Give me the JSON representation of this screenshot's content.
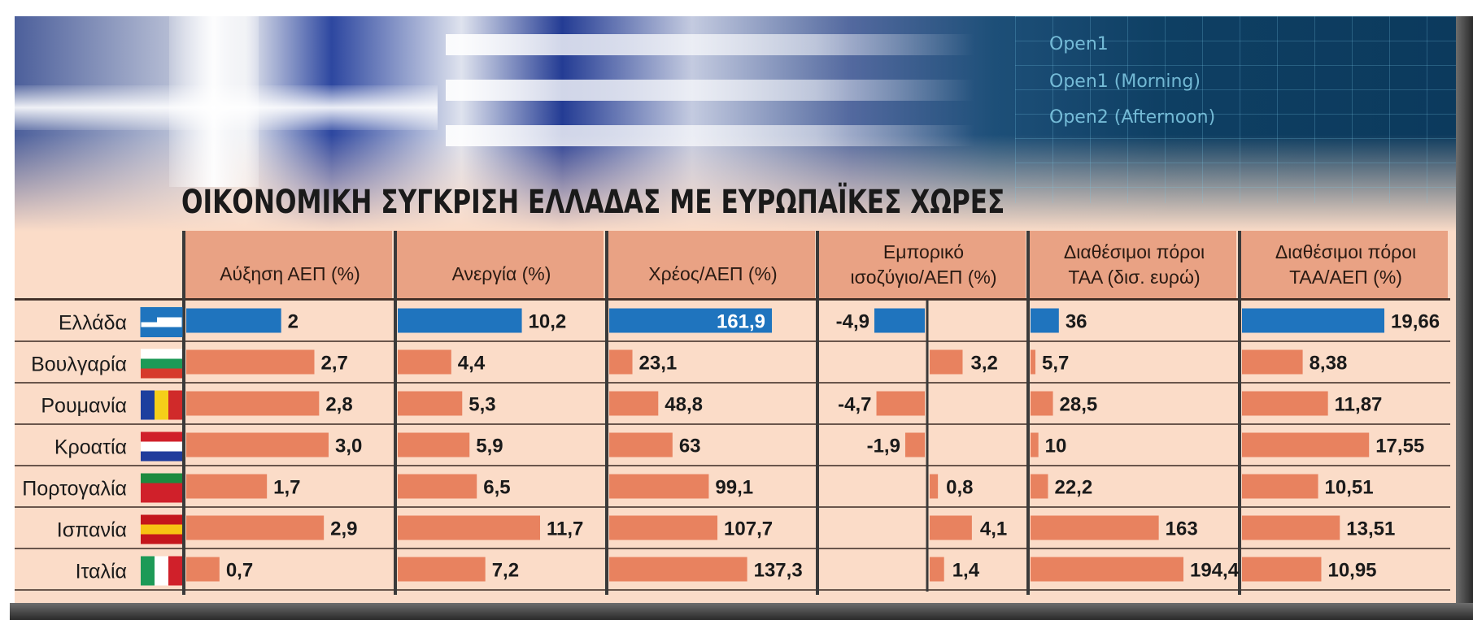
{
  "banner_texts": [
    "Open1",
    "Open1 (Morning)",
    "Open2 (Afternoon)"
  ],
  "chart_data": {
    "type": "bar",
    "title": "ΟΙΚΟΝΟΜΙΚΗ ΣΥΓΚΡΙΣΗ ΕΛΛΑΔΑΣ ΜΕ ΕΥΡΩΠΑΪΚΕΣ ΧΩΡΕΣ",
    "categories": [
      "Ελλάδα",
      "Βουλγαρία",
      "Ρουμανία",
      "Κροατία",
      "Πορτογαλία",
      "Ισπανία",
      "Ιταλία"
    ],
    "highlight_category": "Ελλάδα",
    "colors": {
      "highlight": "#1f74be",
      "bar": "#e8825f",
      "header_bg": "#e9a284",
      "panel_bg": "#fbdcc8",
      "divider": "#3a3a3a"
    },
    "series": [
      {
        "header": [
          "Αύξηση ΑΕΠ (%)"
        ],
        "values": [
          2,
          2.7,
          2.8,
          3.0,
          1.7,
          2.9,
          0.7
        ],
        "labels": [
          "2",
          "2,7",
          "2,8",
          "3,0",
          "1,7",
          "2,9",
          "0,7"
        ]
      },
      {
        "header": [
          "Ανεργία (%)"
        ],
        "values": [
          10.2,
          4.4,
          5.3,
          5.9,
          6.5,
          11.7,
          7.2
        ],
        "labels": [
          "10,2",
          "4,4",
          "5,3",
          "5,9",
          "6,5",
          "11,7",
          "7,2"
        ]
      },
      {
        "header": [
          "Χρέος/ΑΕΠ (%)"
        ],
        "values": [
          161.9,
          23.1,
          48.8,
          63,
          99.1,
          107.7,
          137.3
        ],
        "labels": [
          "161,9",
          "23,1",
          "48,8",
          "63",
          "99,1",
          "107,7",
          "137,3"
        ]
      },
      {
        "header": [
          "Εμπορικό",
          "ισοζύγιο/ΑΕΠ (%)"
        ],
        "values": [
          -4.9,
          3.2,
          -4.7,
          -1.9,
          0.8,
          4.1,
          1.4
        ],
        "labels": [
          "-4,9",
          "3,2",
          "-4,7",
          "-1,9",
          "0,8",
          "4,1",
          "1,4"
        ],
        "diverging": true
      },
      {
        "header": [
          "Διαθέσιμοι πόροι",
          "ΤΑΑ (δισ. ευρώ)"
        ],
        "values": [
          36,
          5.7,
          28.5,
          10,
          22.2,
          163,
          194.4
        ],
        "labels": [
          "36",
          "5,7",
          "28,5",
          "10",
          "22,2",
          "163",
          "194,4"
        ]
      },
      {
        "header": [
          "Διαθέσιμοι πόροι",
          "ΤΑΑ/ΑΕΠ (%)"
        ],
        "values": [
          19.66,
          8.38,
          11.87,
          17.55,
          10.51,
          13.51,
          10.95
        ],
        "labels": [
          "19,66",
          "8,38",
          "11,87",
          "17,55",
          "10,51",
          "13,51",
          "10,95"
        ]
      }
    ]
  }
}
